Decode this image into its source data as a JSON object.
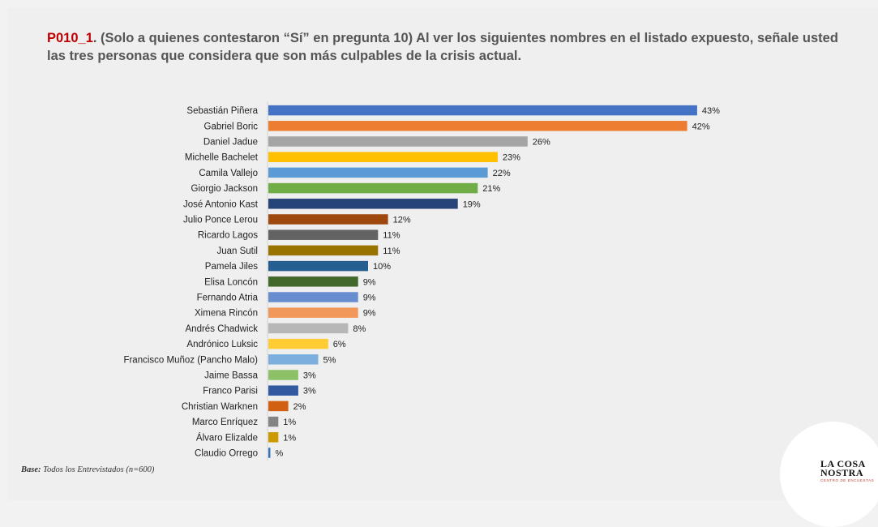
{
  "title": {
    "code": "P010_1",
    "text": ". (Solo a quienes contestaron “Sí” en pregunta 10) Al ver los siguientes nombres en el listado expuesto, señale usted las tres personas que considera que son más culpables de la crisis actual."
  },
  "base": {
    "label": "Base:",
    "text": " Todos los Entrevistados (n=600)"
  },
  "logo": {
    "line1": "LA COSA",
    "line2": "NOSTRA",
    "sub": "CENTRO DE ENCUESTAS"
  },
  "chart_data": {
    "type": "bar",
    "orientation": "horizontal",
    "xlim": [
      0,
      50
    ],
    "grid": false,
    "categories": [
      "Sebastián Piñera",
      "Gabriel Boric",
      "Daniel Jadue",
      "Michelle Bachelet",
      "Camila Vallejo",
      "Giorgio Jackson",
      "José Antonio Kast",
      "Julio Ponce Lerou",
      "Ricardo Lagos",
      "Juan Sutil",
      "Pamela Jiles",
      "Elisa Loncón",
      "Fernando Atria",
      "Ximena Rincón",
      "Andrés Chadwick",
      "Andrónico Luksic",
      "Francisco Muñoz (Pancho Malo)",
      "Jaime Bassa",
      "Franco Parisi",
      "Christian Warknen",
      "Marco Enríquez",
      "Álvaro Elizalde",
      "Claudio Orrego"
    ],
    "values": [
      43,
      42,
      26,
      23,
      22,
      21,
      19,
      12,
      11,
      11,
      10,
      9,
      9,
      9,
      8,
      6,
      5,
      3,
      3,
      2,
      1,
      1,
      0.2
    ],
    "labels": [
      "43%",
      "42%",
      "26%",
      "23%",
      "22%",
      "21%",
      "19%",
      "12%",
      "11%",
      "11%",
      "10%",
      "9%",
      "9%",
      "9%",
      "8%",
      "6%",
      "5%",
      "3%",
      "3%",
      "2%",
      "1%",
      "1%",
      "%"
    ],
    "colors": [
      "#4472c4",
      "#ed7d31",
      "#a5a5a5",
      "#ffc000",
      "#5b9bd5",
      "#70ad47",
      "#264478",
      "#9e480e",
      "#636363",
      "#997300",
      "#255e91",
      "#43682b",
      "#698ed0",
      "#f1975a",
      "#b7b7b7",
      "#ffcd33",
      "#7cafdd",
      "#8cc168",
      "#335aa1",
      "#d26012",
      "#848484",
      "#cc9a00",
      "#2f75b5"
    ]
  }
}
